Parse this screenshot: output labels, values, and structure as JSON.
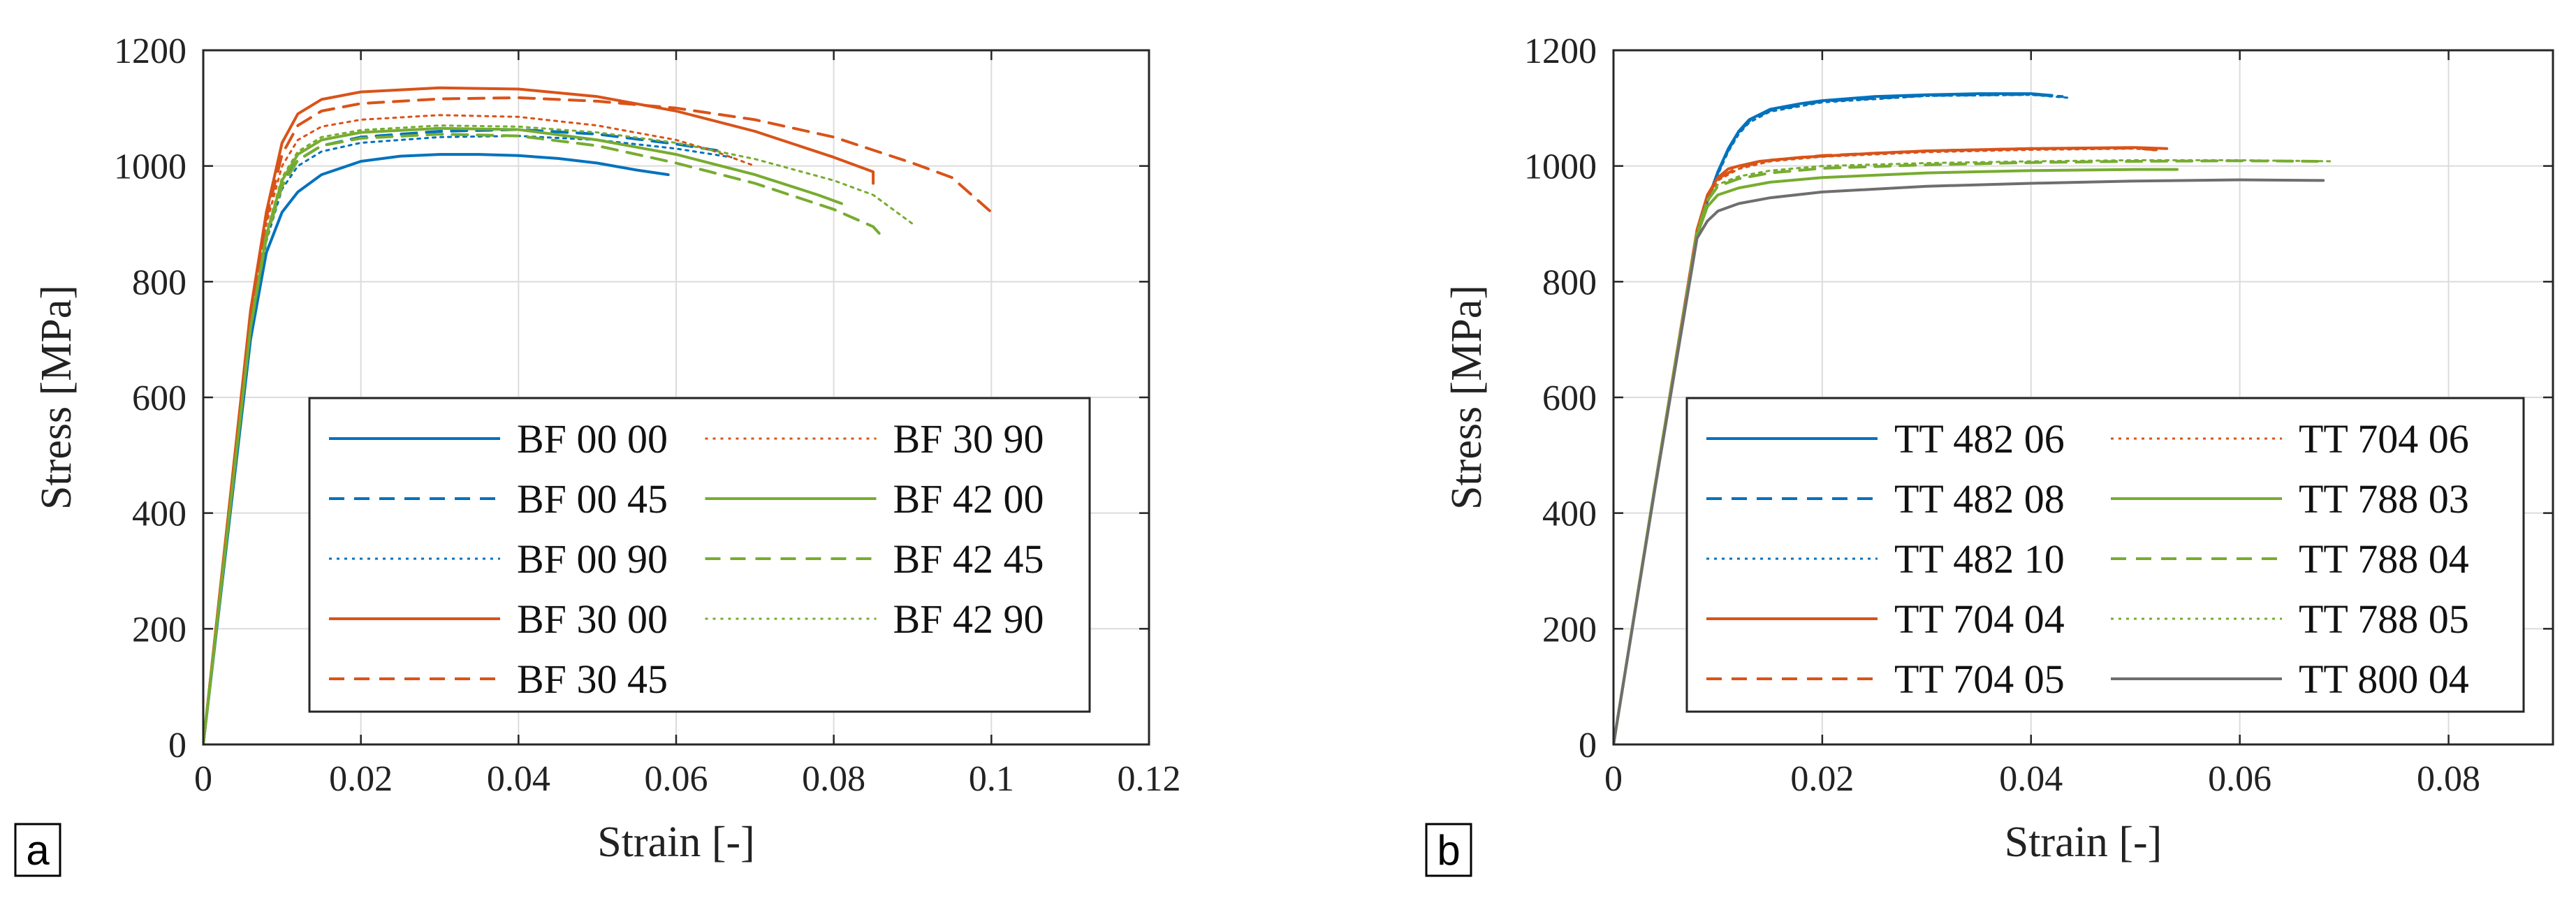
{
  "colors": {
    "blue": "#0072BD",
    "orange": "#D95319",
    "green": "#77AC30",
    "gray": "#6E6E6E"
  },
  "chart_data": [
    {
      "type": "line",
      "panel_label": "a",
      "xlabel": "Strain [-]",
      "ylabel": "Stress [MPa]",
      "xlim": [
        0,
        0.12
      ],
      "ylim": [
        0,
        1200
      ],
      "xticks": [
        0,
        0.02,
        0.04,
        0.06,
        0.08,
        0.1,
        0.12
      ],
      "xtick_labels": [
        "0",
        "0.02",
        "0.04",
        "0.06",
        "0.08",
        "0.1",
        "0.12"
      ],
      "yticks": [
        0,
        200,
        400,
        600,
        800,
        1000,
        1200
      ],
      "ytick_labels": [
        "0",
        "200",
        "400",
        "600",
        "800",
        "1000",
        "1200"
      ],
      "grid": true,
      "legend": {
        "position": "bottom-right",
        "columns": 2
      },
      "series": [
        {
          "name": "BF 00 00",
          "color": "blue",
          "style": "solid",
          "x": [
            0,
            0.006,
            0.008,
            0.01,
            0.012,
            0.015,
            0.02,
            0.025,
            0.03,
            0.035,
            0.04,
            0.045,
            0.05,
            0.055,
            0.059
          ],
          "y": [
            0,
            700,
            850,
            920,
            955,
            985,
            1008,
            1017,
            1020,
            1020,
            1018,
            1013,
            1005,
            993,
            985
          ]
        },
        {
          "name": "BF 00 45",
          "color": "blue",
          "style": "dashed",
          "x": [
            0,
            0.006,
            0.008,
            0.01,
            0.012,
            0.015,
            0.02,
            0.03,
            0.04,
            0.05,
            0.06,
            0.066
          ],
          "y": [
            0,
            720,
            880,
            970,
            1010,
            1035,
            1050,
            1060,
            1063,
            1055,
            1038,
            1025
          ]
        },
        {
          "name": "BF 00 90",
          "color": "blue",
          "style": "dotted",
          "x": [
            0,
            0.006,
            0.008,
            0.01,
            0.012,
            0.015,
            0.02,
            0.03,
            0.04,
            0.05,
            0.06,
            0.067
          ],
          "y": [
            0,
            710,
            870,
            960,
            1000,
            1025,
            1040,
            1050,
            1052,
            1045,
            1030,
            1015
          ]
        },
        {
          "name": "BF 30 00",
          "color": "orange",
          "style": "solid",
          "x": [
            0,
            0.006,
            0.008,
            0.01,
            0.012,
            0.015,
            0.02,
            0.03,
            0.04,
            0.05,
            0.06,
            0.07,
            0.08,
            0.085,
            0.085
          ],
          "y": [
            0,
            750,
            920,
            1040,
            1090,
            1115,
            1128,
            1135,
            1133,
            1120,
            1095,
            1060,
            1015,
            990,
            970
          ]
        },
        {
          "name": "BF 30 45",
          "color": "orange",
          "style": "dashed",
          "x": [
            0,
            0.006,
            0.008,
            0.01,
            0.012,
            0.015,
            0.02,
            0.03,
            0.04,
            0.05,
            0.06,
            0.07,
            0.08,
            0.09,
            0.095,
            0.1
          ],
          "y": [
            0,
            740,
            910,
            1020,
            1070,
            1095,
            1108,
            1116,
            1118,
            1112,
            1100,
            1080,
            1050,
            1005,
            980,
            920
          ]
        },
        {
          "name": "BF 30 90",
          "color": "orange",
          "style": "dotted",
          "x": [
            0,
            0.006,
            0.008,
            0.01,
            0.012,
            0.015,
            0.02,
            0.03,
            0.04,
            0.05,
            0.06,
            0.065,
            0.07
          ],
          "y": [
            0,
            730,
            900,
            1000,
            1045,
            1068,
            1080,
            1088,
            1085,
            1070,
            1045,
            1025,
            1000
          ]
        },
        {
          "name": "BF 42 00",
          "color": "green",
          "style": "solid",
          "x": [
            0,
            0.006,
            0.008,
            0.01,
            0.012,
            0.015,
            0.02,
            0.03,
            0.04,
            0.05,
            0.06,
            0.07,
            0.078,
            0.081
          ],
          "y": [
            0,
            720,
            880,
            975,
            1020,
            1045,
            1058,
            1065,
            1063,
            1045,
            1020,
            985,
            950,
            935
          ]
        },
        {
          "name": "BF 42 45",
          "color": "green",
          "style": "dashed",
          "x": [
            0,
            0.006,
            0.008,
            0.01,
            0.012,
            0.015,
            0.02,
            0.03,
            0.04,
            0.05,
            0.06,
            0.07,
            0.08,
            0.085,
            0.086
          ],
          "y": [
            0,
            720,
            875,
            965,
            1010,
            1035,
            1048,
            1055,
            1052,
            1035,
            1005,
            970,
            925,
            895,
            880
          ]
        },
        {
          "name": "BF 42 90",
          "color": "green",
          "style": "dotted",
          "x": [
            0,
            0.006,
            0.008,
            0.01,
            0.012,
            0.015,
            0.02,
            0.03,
            0.04,
            0.05,
            0.06,
            0.07,
            0.08,
            0.085,
            0.09
          ],
          "y": [
            0,
            725,
            885,
            980,
            1025,
            1050,
            1062,
            1070,
            1068,
            1058,
            1040,
            1012,
            975,
            950,
            900
          ]
        }
      ]
    },
    {
      "type": "line",
      "panel_label": "b",
      "xlabel": "Strain [-]",
      "ylabel": "Stress [MPa]",
      "xlim": [
        0,
        0.09
      ],
      "ylim": [
        0,
        1200
      ],
      "xticks": [
        0,
        0.02,
        0.04,
        0.06,
        0.08
      ],
      "xtick_labels": [
        "0",
        "0.02",
        "0.04",
        "0.06",
        "0.08"
      ],
      "yticks": [
        0,
        200,
        400,
        600,
        800,
        1000,
        1200
      ],
      "ytick_labels": [
        "0",
        "200",
        "400",
        "600",
        "800",
        "1000",
        "1200"
      ],
      "grid": true,
      "legend": {
        "position": "bottom-right",
        "columns": 2
      },
      "series": [
        {
          "name": "TT 482 06",
          "color": "blue",
          "style": "solid",
          "x": [
            0,
            0.004,
            0.008,
            0.009,
            0.01,
            0.011,
            0.012,
            0.013,
            0.015,
            0.018,
            0.02,
            0.025,
            0.03,
            0.035,
            0.04,
            0.042
          ],
          "y": [
            0,
            450,
            880,
            940,
            990,
            1030,
            1060,
            1080,
            1098,
            1108,
            1113,
            1120,
            1123,
            1125,
            1125,
            1122
          ]
        },
        {
          "name": "TT 482 08",
          "color": "blue",
          "style": "dashed",
          "x": [
            0,
            0.004,
            0.008,
            0.009,
            0.01,
            0.011,
            0.012,
            0.013,
            0.015,
            0.02,
            0.03,
            0.04,
            0.043
          ],
          "y": [
            0,
            450,
            878,
            938,
            988,
            1028,
            1058,
            1078,
            1096,
            1112,
            1122,
            1124,
            1120
          ]
        },
        {
          "name": "TT 482 10",
          "color": "blue",
          "style": "dotted",
          "x": [
            0,
            0.004,
            0.008,
            0.009,
            0.01,
            0.011,
            0.012,
            0.013,
            0.015,
            0.02,
            0.03,
            0.04,
            0.0435
          ],
          "y": [
            0,
            448,
            875,
            935,
            985,
            1025,
            1055,
            1075,
            1094,
            1110,
            1121,
            1123,
            1118
          ]
        },
        {
          "name": "TT 704 04",
          "color": "orange",
          "style": "solid",
          "x": [
            0,
            0.004,
            0.008,
            0.009,
            0.01,
            0.011,
            0.012,
            0.014,
            0.018,
            0.025,
            0.03,
            0.04,
            0.05,
            0.053
          ],
          "y": [
            0,
            450,
            890,
            950,
            980,
            995,
            1000,
            1008,
            1015,
            1022,
            1026,
            1030,
            1032,
            1030
          ]
        },
        {
          "name": "TT 704 05",
          "color": "orange",
          "style": "dashed",
          "x": [
            0,
            0.004,
            0.008,
            0.009,
            0.01,
            0.012,
            0.015,
            0.02,
            0.03,
            0.04,
            0.05,
            0.052
          ],
          "y": [
            0,
            450,
            888,
            948,
            978,
            998,
            1010,
            1018,
            1026,
            1030,
            1031,
            1028
          ]
        },
        {
          "name": "TT 704 06",
          "color": "orange",
          "style": "dotted",
          "x": [
            0,
            0.004,
            0.008,
            0.009,
            0.01,
            0.012,
            0.015,
            0.02,
            0.03,
            0.04,
            0.05,
            0.052
          ],
          "y": [
            0,
            450,
            885,
            945,
            975,
            995,
            1008,
            1016,
            1024,
            1028,
            1030,
            1027
          ]
        },
        {
          "name": "TT 788 03",
          "color": "green",
          "style": "solid",
          "x": [
            0,
            0.004,
            0.008,
            0.009,
            0.01,
            0.012,
            0.015,
            0.02,
            0.03,
            0.04,
            0.05,
            0.054
          ],
          "y": [
            0,
            450,
            880,
            930,
            950,
            962,
            972,
            980,
            988,
            992,
            994,
            994
          ]
        },
        {
          "name": "TT 788 04",
          "color": "green",
          "style": "dashed",
          "x": [
            0,
            0.004,
            0.008,
            0.009,
            0.01,
            0.012,
            0.015,
            0.02,
            0.03,
            0.04,
            0.05,
            0.06,
            0.068
          ],
          "y": [
            0,
            450,
            885,
            940,
            965,
            978,
            988,
            996,
            1002,
            1006,
            1008,
            1009,
            1008
          ]
        },
        {
          "name": "TT 788 05",
          "color": "green",
          "style": "dotted",
          "x": [
            0,
            0.004,
            0.008,
            0.009,
            0.01,
            0.012,
            0.015,
            0.02,
            0.03,
            0.04,
            0.05,
            0.06,
            0.069
          ],
          "y": [
            0,
            450,
            886,
            942,
            968,
            982,
            992,
            1000,
            1005,
            1008,
            1010,
            1010,
            1008
          ]
        },
        {
          "name": "TT 800 04",
          "color": "gray",
          "style": "solid",
          "x": [
            0,
            0.004,
            0.008,
            0.009,
            0.01,
            0.012,
            0.015,
            0.02,
            0.03,
            0.04,
            0.05,
            0.06,
            0.068
          ],
          "y": [
            0,
            445,
            875,
            905,
            922,
            935,
            945,
            955,
            965,
            970,
            974,
            976,
            975
          ]
        }
      ]
    }
  ]
}
